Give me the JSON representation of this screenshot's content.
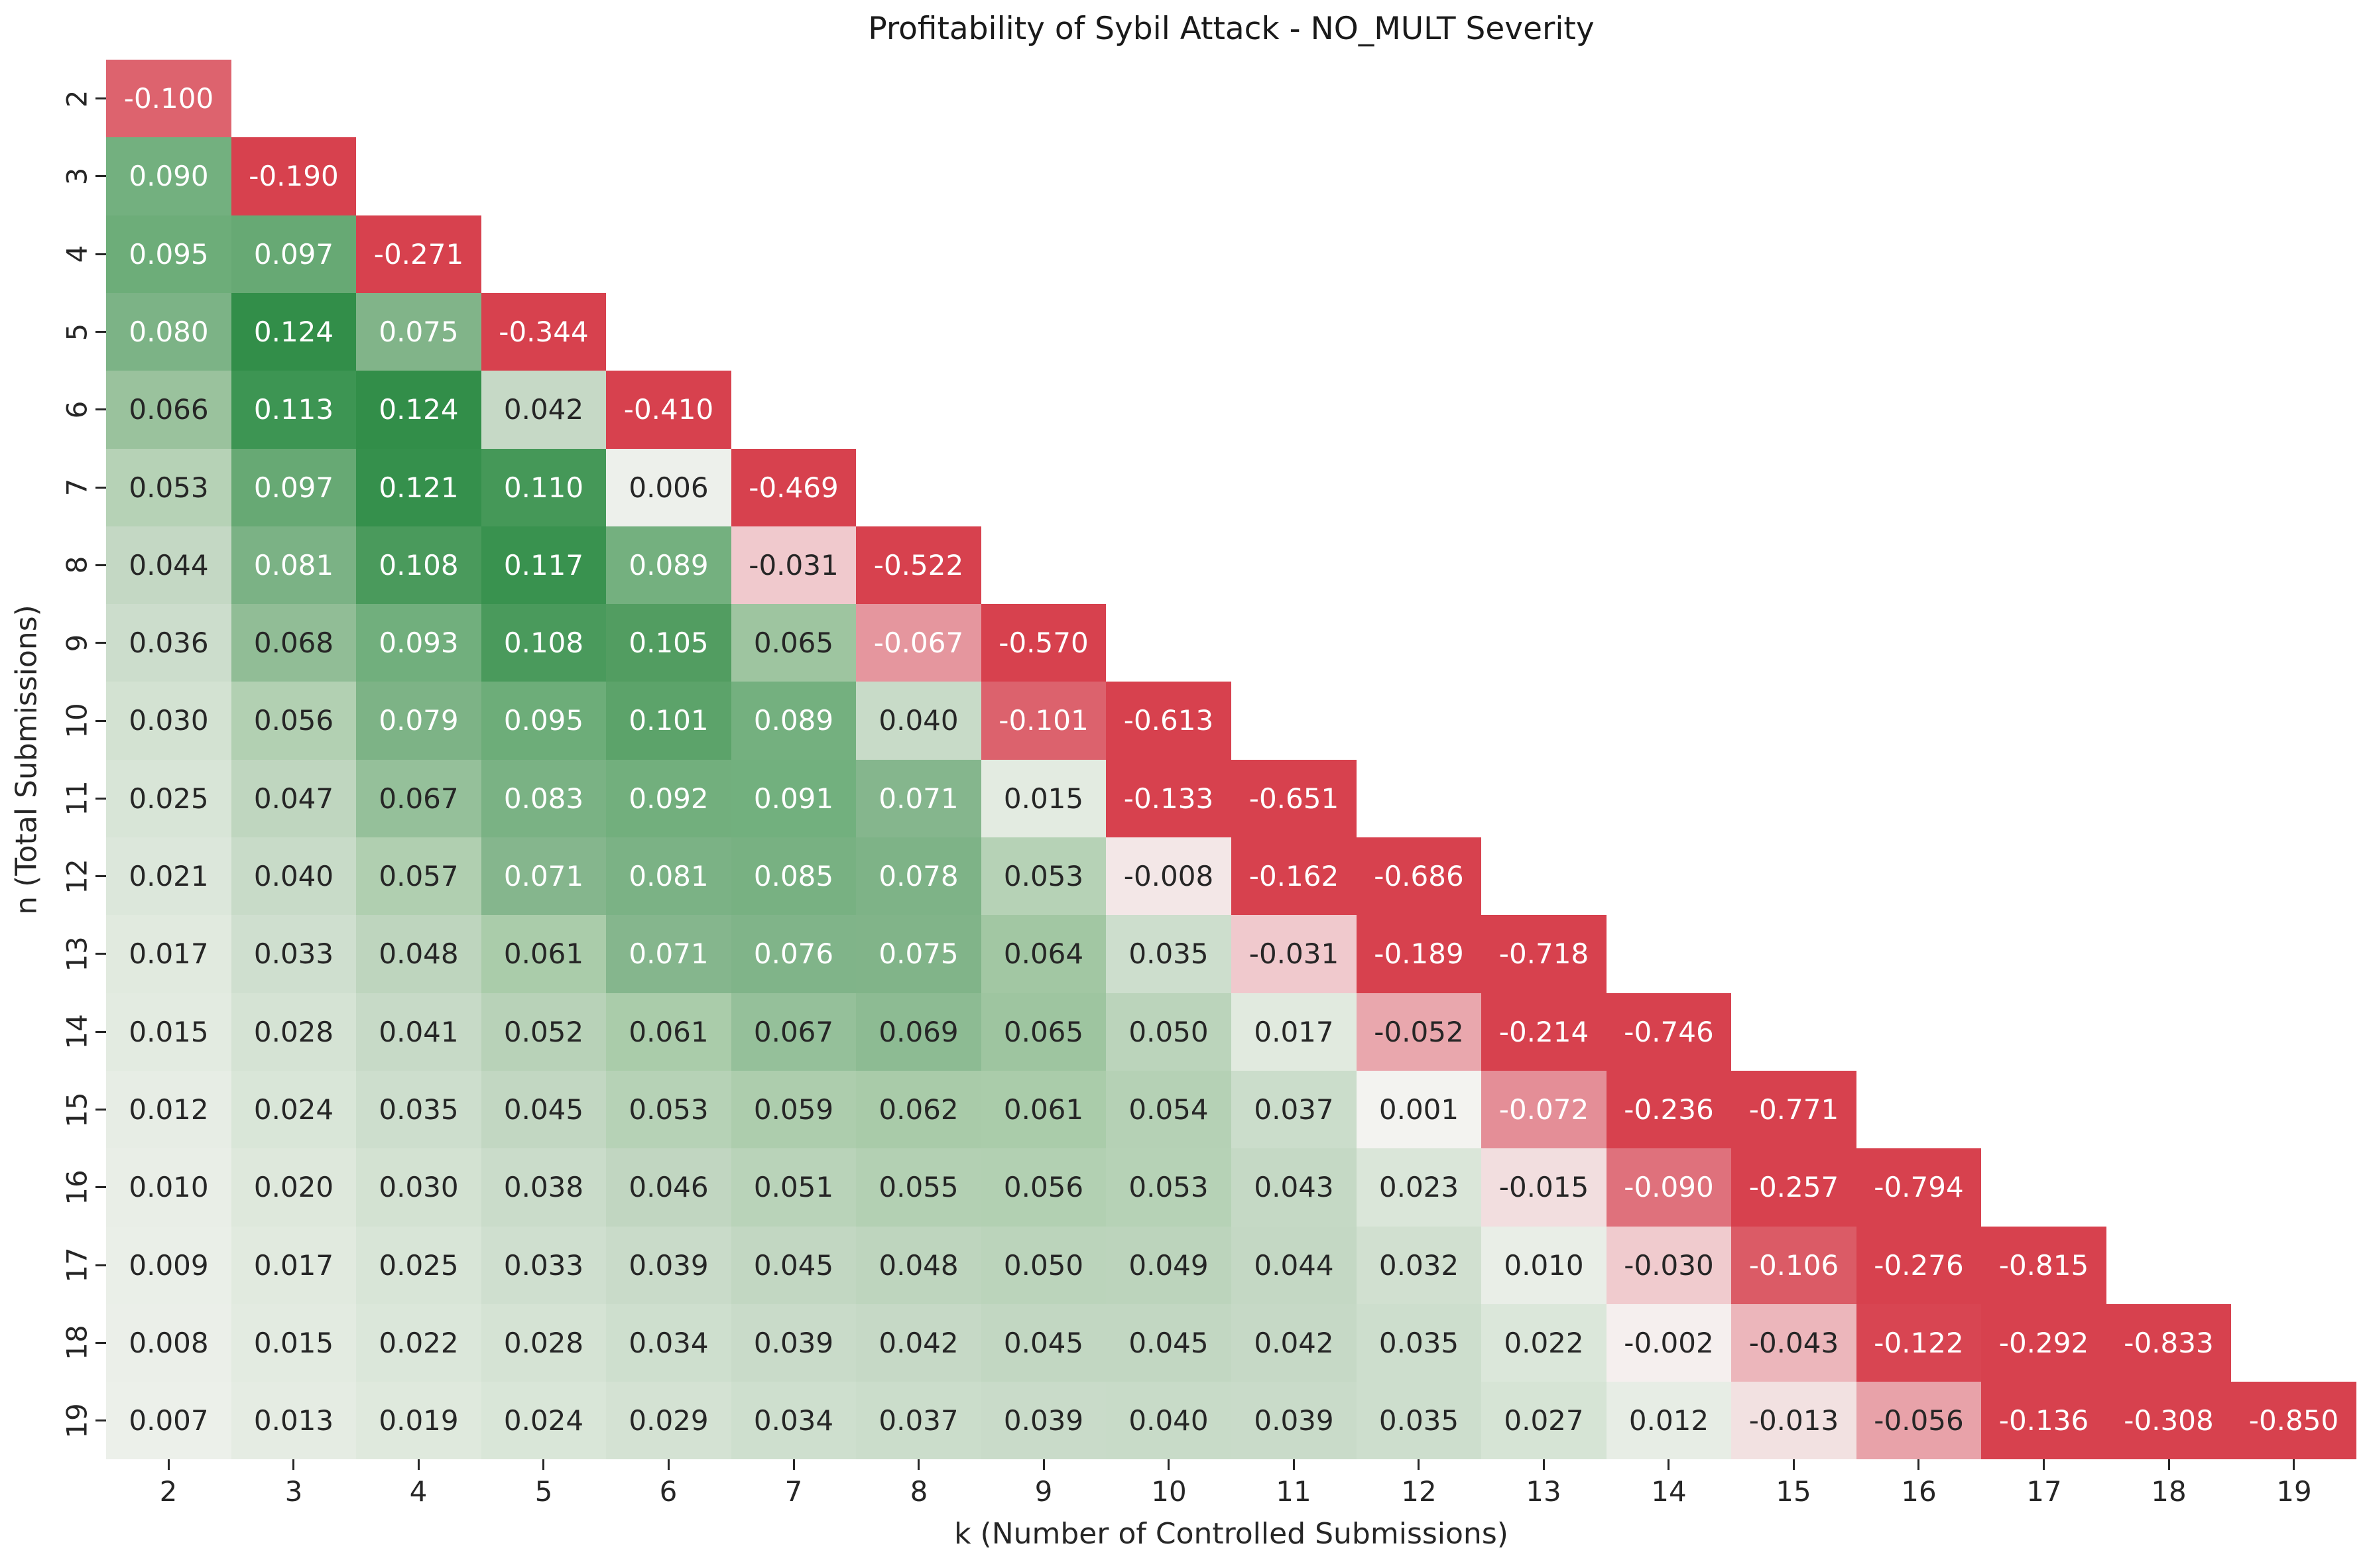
{
  "title": "Profitability of Sybil Attack - NO_MULT Severity",
  "chart_data": {
    "type": "heatmap",
    "title": "Profitability of Sybil Attack - NO_MULT Severity",
    "xlabel": "k (Number of Controlled Submissions)",
    "ylabel": "n (Total Submissions)",
    "x_ticks": [
      "2",
      "3",
      "4",
      "5",
      "6",
      "7",
      "8",
      "9",
      "10",
      "11",
      "12",
      "13",
      "14",
      "15",
      "16",
      "17",
      "18",
      "19"
    ],
    "y_ticks": [
      "2",
      "3",
      "4",
      "5",
      "6",
      "7",
      "8",
      "9",
      "10",
      "11",
      "12",
      "13",
      "14",
      "15",
      "16",
      "17",
      "18",
      "19"
    ],
    "x_start": 2,
    "value_format": "3-decimals",
    "legend": "none",
    "grid": "off",
    "shape": "lower-triangular (cells exist for k <= n)",
    "color_scale": {
      "diverging": true,
      "clip_abs_value": 0.125,
      "positive_max_color": "#328e48",
      "negative_max_color": "#d7414e",
      "near_zero_color": "#f4f4f1",
      "dark_text": "#262626",
      "light_text": "#ffffff",
      "luminance_threshold": 0.43,
      "positive_anchors": [
        [
          0.0,
          [
            244,
            244,
            241
          ]
        ],
        [
          0.2,
          [
            216,
            229,
            215
          ]
        ],
        [
          0.35,
          [
            196,
            216,
            196
          ]
        ],
        [
          0.5,
          [
            168,
            203,
            168
          ]
        ],
        [
          0.57,
          [
            132,
            181,
            140
          ]
        ],
        [
          0.75,
          [
            112,
            175,
            124
          ]
        ],
        [
          0.82,
          [
            88,
            160,
            102
          ]
        ],
        [
          0.9,
          [
            62,
            149,
            83
          ]
        ],
        [
          1.0,
          [
            49,
            141,
            72
          ]
        ]
      ],
      "negative_anchors": [
        [
          0.0,
          [
            245,
            242,
            240
          ]
        ],
        [
          0.12,
          [
            242,
            222,
            223
          ]
        ],
        [
          0.25,
          [
            240,
            201,
            205
          ]
        ],
        [
          0.42,
          [
            233,
            166,
            172
          ]
        ],
        [
          0.54,
          [
            229,
            149,
            158
          ]
        ],
        [
          0.75,
          [
            222,
            107,
            118
          ]
        ],
        [
          0.85,
          [
            219,
            91,
            102
          ]
        ],
        [
          1.0,
          [
            215,
            65,
            78
          ]
        ]
      ]
    },
    "rows": [
      {
        "n": 2,
        "values": [
          -0.1
        ]
      },
      {
        "n": 3,
        "values": [
          0.09,
          -0.19
        ]
      },
      {
        "n": 4,
        "values": [
          0.095,
          0.097,
          -0.271
        ]
      },
      {
        "n": 5,
        "values": [
          0.08,
          0.124,
          0.075,
          -0.344
        ]
      },
      {
        "n": 6,
        "values": [
          0.066,
          0.113,
          0.124,
          0.042,
          -0.41
        ]
      },
      {
        "n": 7,
        "values": [
          0.053,
          0.097,
          0.121,
          0.11,
          0.006,
          -0.469
        ]
      },
      {
        "n": 8,
        "values": [
          0.044,
          0.081,
          0.108,
          0.117,
          0.089,
          -0.031,
          -0.522
        ]
      },
      {
        "n": 9,
        "values": [
          0.036,
          0.068,
          0.093,
          0.108,
          0.105,
          0.065,
          -0.067,
          -0.57
        ]
      },
      {
        "n": 10,
        "values": [
          0.03,
          0.056,
          0.079,
          0.095,
          0.101,
          0.089,
          0.04,
          -0.101,
          -0.613
        ]
      },
      {
        "n": 11,
        "values": [
          0.025,
          0.047,
          0.067,
          0.083,
          0.092,
          0.091,
          0.071,
          0.015,
          -0.133,
          -0.651
        ]
      },
      {
        "n": 12,
        "values": [
          0.021,
          0.04,
          0.057,
          0.071,
          0.081,
          0.085,
          0.078,
          0.053,
          -0.008,
          -0.162,
          -0.686
        ]
      },
      {
        "n": 13,
        "values": [
          0.017,
          0.033,
          0.048,
          0.061,
          0.071,
          0.076,
          0.075,
          0.064,
          0.035,
          -0.031,
          -0.189,
          -0.718
        ]
      },
      {
        "n": 14,
        "values": [
          0.015,
          0.028,
          0.041,
          0.052,
          0.061,
          0.067,
          0.069,
          0.065,
          0.05,
          0.017,
          -0.052,
          -0.214,
          -0.746
        ]
      },
      {
        "n": 15,
        "values": [
          0.012,
          0.024,
          0.035,
          0.045,
          0.053,
          0.059,
          0.062,
          0.061,
          0.054,
          0.037,
          0.001,
          -0.072,
          -0.236,
          -0.771
        ]
      },
      {
        "n": 16,
        "values": [
          0.01,
          0.02,
          0.03,
          0.038,
          0.046,
          0.051,
          0.055,
          0.056,
          0.053,
          0.043,
          0.023,
          -0.015,
          -0.09,
          -0.257,
          -0.794
        ]
      },
      {
        "n": 17,
        "values": [
          0.009,
          0.017,
          0.025,
          0.033,
          0.039,
          0.045,
          0.048,
          0.05,
          0.049,
          0.044,
          0.032,
          0.01,
          -0.03,
          -0.106,
          -0.276,
          -0.815
        ]
      },
      {
        "n": 18,
        "values": [
          0.008,
          0.015,
          0.022,
          0.028,
          0.034,
          0.039,
          0.042,
          0.045,
          0.045,
          0.042,
          0.035,
          0.022,
          -0.002,
          -0.043,
          -0.122,
          -0.292,
          -0.833
        ]
      },
      {
        "n": 19,
        "values": [
          0.007,
          0.013,
          0.019,
          0.024,
          0.029,
          0.034,
          0.037,
          0.039,
          0.04,
          0.039,
          0.035,
          0.027,
          0.012,
          -0.013,
          -0.056,
          -0.136,
          -0.308,
          -0.85
        ]
      }
    ]
  }
}
